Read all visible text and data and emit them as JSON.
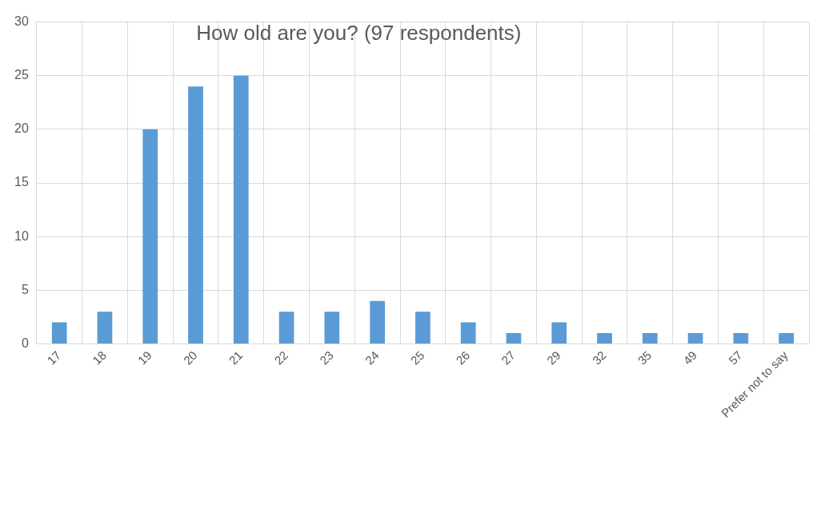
{
  "chart_data": {
    "type": "bar",
    "title": "How old are you? (97 respondents)",
    "categories": [
      "17",
      "18",
      "19",
      "20",
      "21",
      "22",
      "23",
      "24",
      "25",
      "26",
      "27",
      "29",
      "32",
      "35",
      "49",
      "57",
      "Prefer not to say"
    ],
    "values": [
      2,
      3,
      20,
      24,
      25,
      3,
      3,
      4,
      3,
      2,
      1,
      2,
      1,
      1,
      1,
      1,
      1
    ],
    "color": "#5b9bd5",
    "ylim": [
      0,
      30
    ],
    "yticks": [
      0,
      5,
      10,
      15,
      20,
      25,
      30
    ],
    "grid": true,
    "legend": false
  }
}
